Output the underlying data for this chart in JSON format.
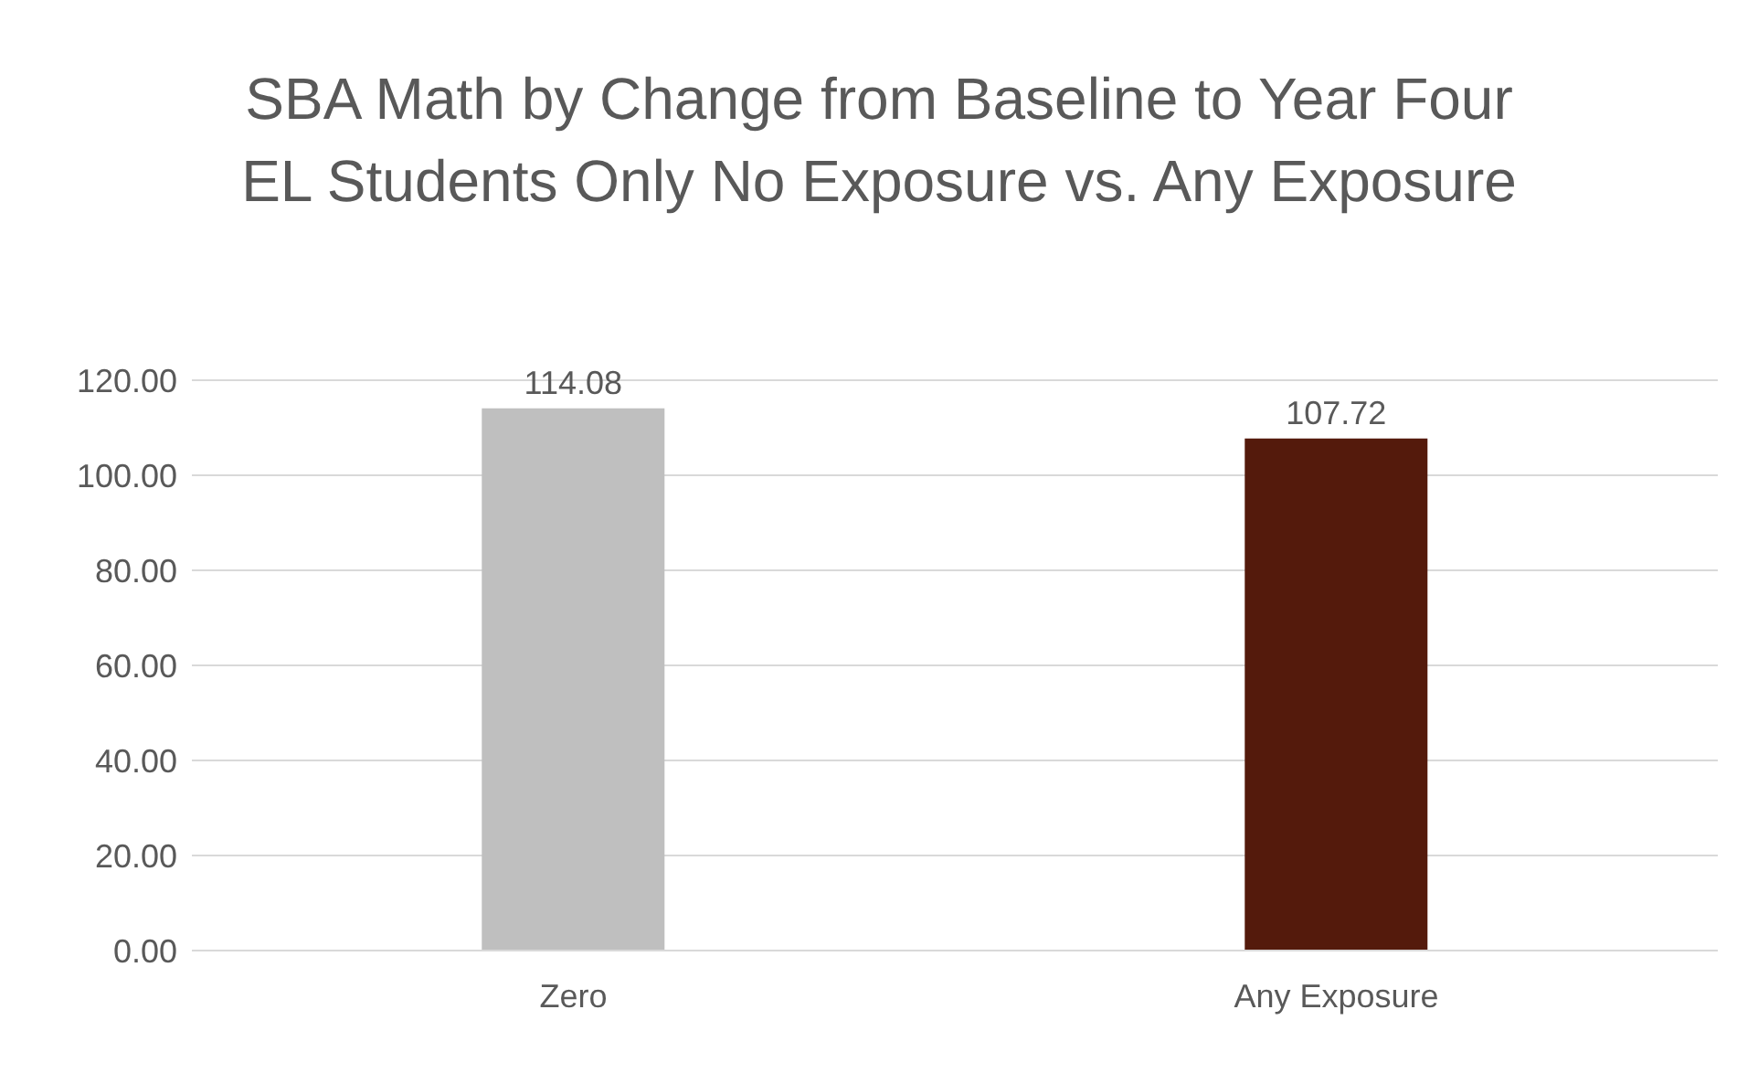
{
  "chart_data": {
    "type": "bar",
    "title": "SBA Math by Change from Baseline to Year Four EL Students Only No Exposure vs. Any Exposure",
    "categories": [
      "Zero",
      "Any Exposure"
    ],
    "values": [
      114.08,
      107.72
    ],
    "colors": [
      "#bfbfbf",
      "#541a0c"
    ],
    "ylim": [
      0,
      120
    ],
    "yticks": [
      {
        "value": 0,
        "label": "0.00"
      },
      {
        "value": 20,
        "label": "20.00"
      },
      {
        "value": 40,
        "label": "40.00"
      },
      {
        "value": 60,
        "label": "60.00"
      },
      {
        "value": 80,
        "label": "80.00"
      },
      {
        "value": 100,
        "label": "100.00"
      },
      {
        "value": 120,
        "label": "120.00"
      }
    ],
    "grid": "y",
    "data_labels": true,
    "legend": false
  }
}
